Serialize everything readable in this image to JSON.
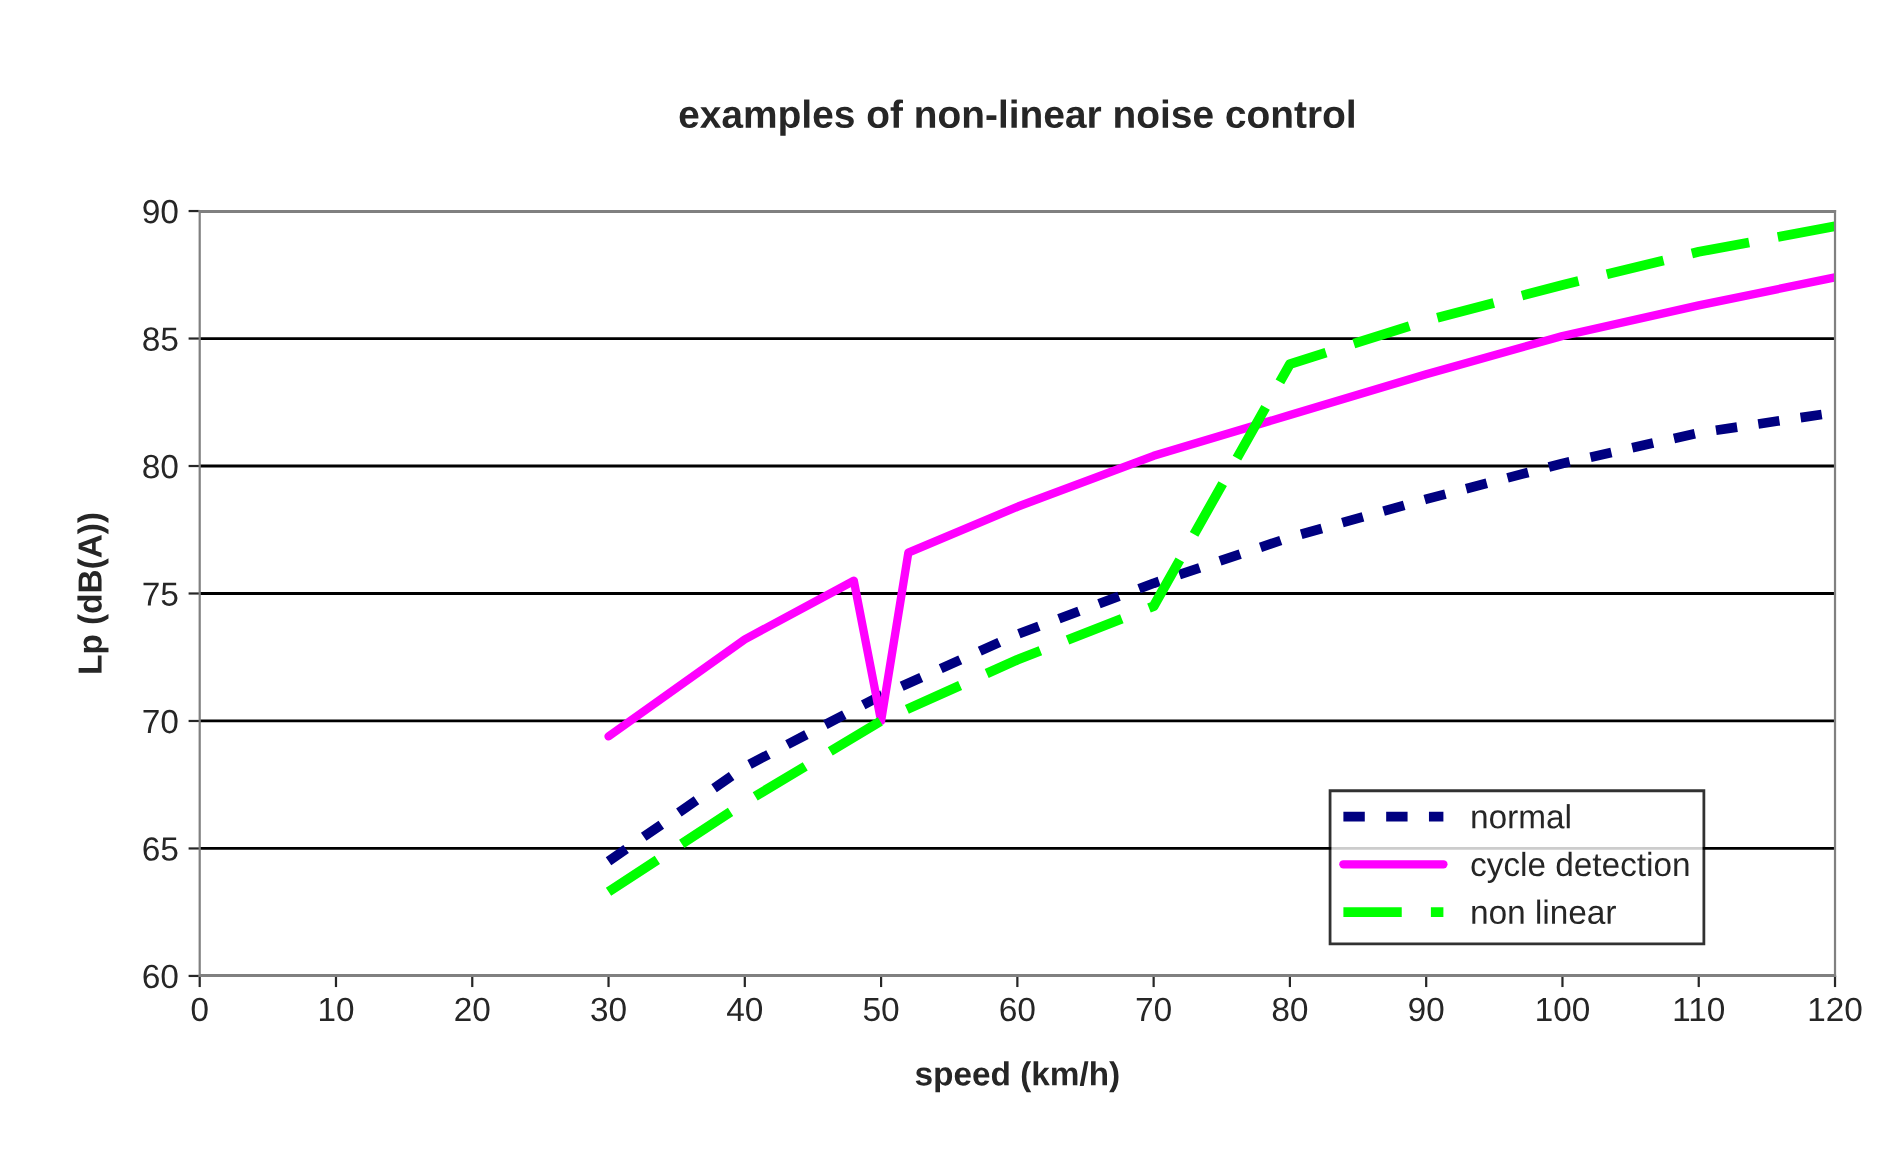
{
  "chart_data": {
    "type": "line",
    "title": "examples of non-linear noise control",
    "xlabel": "speed (km/h)",
    "ylabel": "Lp (dB(A))",
    "xlim": [
      0,
      120
    ],
    "xticks": [
      0,
      10,
      20,
      30,
      40,
      50,
      60,
      70,
      80,
      90,
      100,
      110,
      120
    ],
    "ylim": [
      60,
      90
    ],
    "yticks": [
      60,
      65,
      70,
      75,
      80,
      85,
      90
    ],
    "grid": "y",
    "legend": "bottom right",
    "series": [
      {
        "name": "normal",
        "color": "#000080",
        "line_style": "dotted",
        "x": [
          30,
          40,
          50,
          60,
          70,
          80,
          90,
          100,
          110,
          120
        ],
        "values": [
          64.5,
          68.2,
          71.0,
          73.4,
          75.4,
          77.2,
          78.7,
          80.1,
          81.3,
          82.1
        ]
      },
      {
        "name": "cycle detection",
        "color": "#ff00ff",
        "line_style": "solid",
        "x": [
          30,
          40,
          48,
          50,
          52,
          60,
          70,
          80,
          90,
          100,
          110,
          120
        ],
        "values": [
          69.4,
          73.2,
          75.5,
          70.0,
          76.6,
          78.4,
          80.4,
          82.0,
          83.6,
          85.1,
          86.3,
          87.4
        ]
      },
      {
        "name": "non linear",
        "color": "#00ff00",
        "line_style": "dashed",
        "x": [
          30,
          40,
          50,
          60,
          70,
          80,
          90,
          100,
          110,
          120
        ],
        "values": [
          63.3,
          66.8,
          70.0,
          72.4,
          74.5,
          84.0,
          85.7,
          87.1,
          88.4,
          89.4
        ]
      }
    ]
  }
}
